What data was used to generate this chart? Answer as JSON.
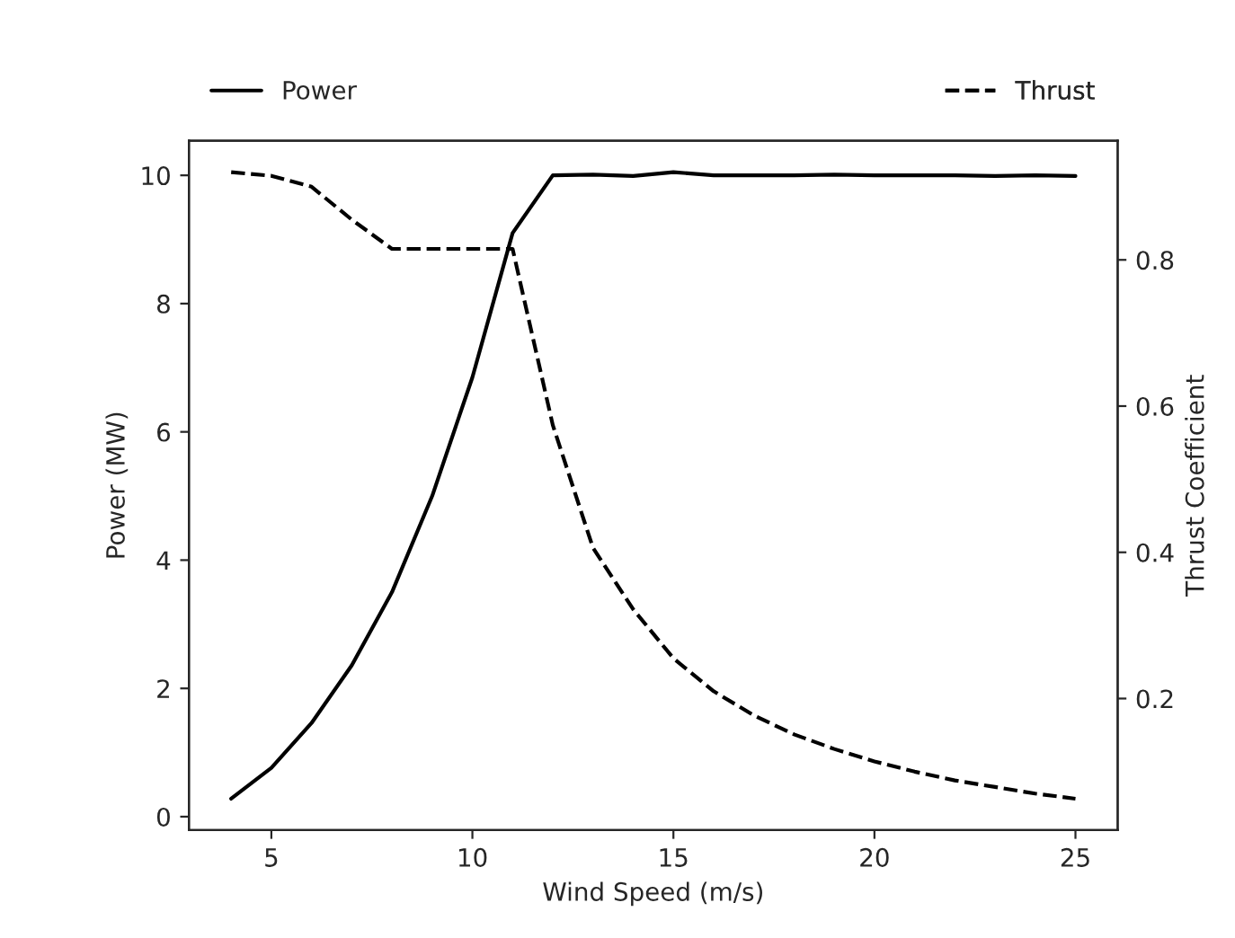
{
  "chart_data": {
    "type": "line",
    "xlabel": "Wind Speed (m/s)",
    "ylabel": "Power (MW)",
    "y2label": "Thrust Coefficient",
    "x": [
      4,
      5,
      6,
      7,
      8,
      9,
      10,
      11,
      12,
      13,
      14,
      15,
      16,
      17,
      18,
      19,
      20,
      21,
      22,
      23,
      24,
      25
    ],
    "series": [
      {
        "name": "Power",
        "color": "#000000",
        "line_style": "solid",
        "values": [
          0.28,
          0.76,
          1.46,
          2.36,
          3.5,
          5.0,
          6.85,
          9.1,
          10.0,
          10.01,
          9.99,
          10.05,
          10.0,
          10.0,
          10.0,
          10.01,
          10.0,
          10.0,
          10.0,
          9.99,
          10.0,
          9.99
        ]
      },
      {
        "name": "Thrust",
        "color": "#000000",
        "line_style": "dashed",
        "axis": "y2",
        "values": [
          0.92,
          0.915,
          0.9,
          0.855,
          0.815,
          0.815,
          0.815,
          0.815,
          0.574,
          0.406,
          0.322,
          0.255,
          0.21,
          0.177,
          0.151,
          0.131,
          0.114,
          0.1,
          0.088,
          0.079,
          0.07,
          0.063
        ]
      }
    ],
    "xlim": [
      2.95,
      26.05
    ],
    "xticks": [
      5,
      10,
      15,
      20,
      25
    ],
    "ylim": [
      -0.21,
      10.54
    ],
    "yticks": [
      0,
      2,
      4,
      6,
      8,
      10
    ],
    "y2lim": [
      0.02,
      0.963
    ],
    "y2ticks": [
      0.2,
      0.4,
      0.6,
      0.8
    ],
    "legend": "top",
    "grid": false,
    "marker": "none"
  }
}
